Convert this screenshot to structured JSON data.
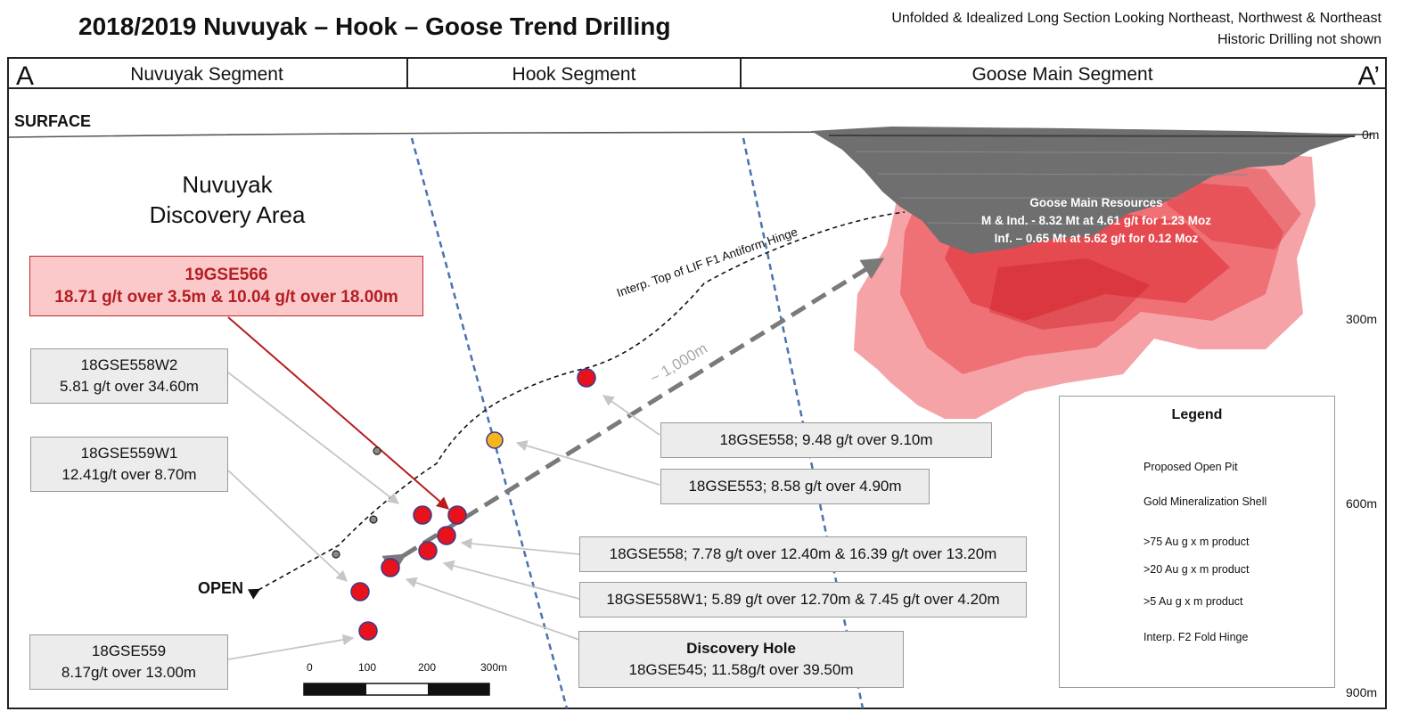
{
  "title": "2018/2019 Nuvuyak – Hook – Goose Trend Drilling",
  "notes": {
    "line1": "Unfolded & Idealized Long Section Looking Northeast, Northwest & Northeast",
    "line2": "Historic Drilling not shown"
  },
  "section_ends": {
    "left": "A",
    "right": "A’"
  },
  "segments": [
    "Nuvuyak Segment",
    "Hook Segment",
    "Goose Main Segment"
  ],
  "surface_label": "SURFACE",
  "depth_labels": [
    "0m",
    "300m",
    "600m",
    "900m"
  ],
  "area_label": {
    "line1": "Nuvuyak",
    "line2": "Discovery Area"
  },
  "resources": {
    "title": "Goose Main Resources",
    "line1": "M & Ind.  - 8.32 Mt at 4.61 g/t for 1.23 Moz",
    "line2": "Inf. – 0.65 Mt at 5.62 g/t for 0.12 Moz"
  },
  "hinge_label": "Interp. Top of LIF F1 Antiform Hinge",
  "distance_label": "~ 1,000m",
  "open_label": "OPEN",
  "callouts": {
    "gse566": {
      "title": "19GSE566",
      "text": "18.71 g/t over 3.5m & 10.04 g/t over 18.00m"
    },
    "gse558w2": {
      "title": "18GSE558W2",
      "text": "5.81 g/t over 34.60m"
    },
    "gse559w1": {
      "title": "18GSE559W1",
      "text": "12.41g/t over 8.70m"
    },
    "gse559": {
      "title": "18GSE559",
      "text": "8.17g/t over 13.00m"
    },
    "gse558a": {
      "text": "18GSE558; 9.48 g/t over 9.10m"
    },
    "gse553": {
      "text": "18GSE553; 8.58 g/t over 4.90m"
    },
    "gse558b": {
      "text": "18GSE558; 7.78 g/t over 12.40m & 16.39 g/t over 13.20m"
    },
    "gse558w1": {
      "text": "18GSE558W1; 5.89 g/t over 12.70m & 7.45 g/t over 4.20m"
    },
    "discovery": {
      "title": "Discovery Hole",
      "text": "18GSE545; 11.58g/t over 39.50m"
    }
  },
  "scale_bar": {
    "ticks": [
      "0",
      "100",
      "200",
      "300m"
    ]
  },
  "legend": {
    "title": "Legend",
    "items": [
      "Proposed Open Pit",
      "Gold Mineralization Shell",
      ">75 Au g x m product",
      ">20 Au g x m product",
      ">5 Au g x m product",
      "Interp. F2 Fold Hinge"
    ]
  },
  "colors": {
    "red_marker": "#e8121d",
    "yellow_marker": "#f6b51c",
    "small_marker": "#8a8a8a",
    "fold_hinge": "#4a72b0",
    "callout_arrow": "#b81c1c",
    "gold_shell": "#e8333a",
    "open_pit": "#6f6f6f"
  }
}
